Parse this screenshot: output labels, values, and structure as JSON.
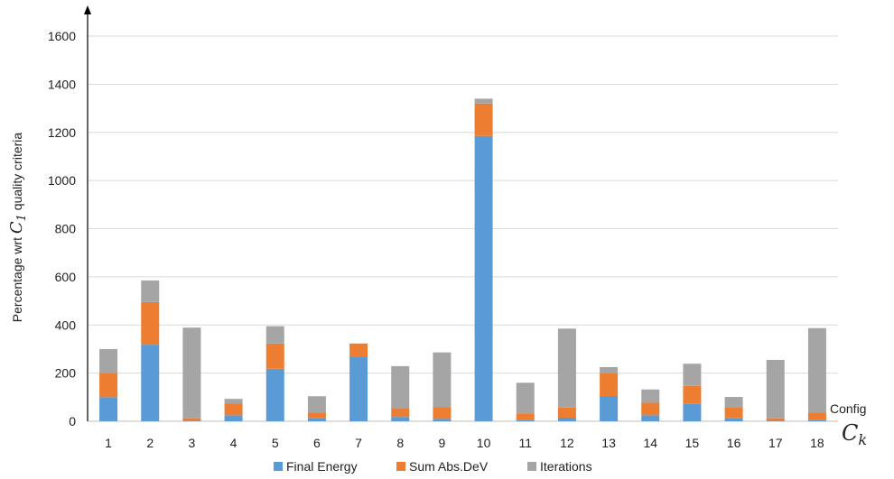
{
  "chart_data": {
    "type": "bar",
    "stacked": true,
    "categories": [
      "1",
      "2",
      "3",
      "4",
      "5",
      "6",
      "7",
      "8",
      "9",
      "10",
      "11",
      "12",
      "13",
      "14",
      "15",
      "16",
      "17",
      "18"
    ],
    "series": [
      {
        "name": "Final Energy",
        "color": "#5b9bd5",
        "values": [
          100,
          318,
          2,
          25,
          218,
          12,
          268,
          18,
          10,
          1185,
          5,
          15,
          105,
          25,
          72,
          12,
          2,
          5
        ]
      },
      {
        "name": "Sum Abs.DeV",
        "color": "#ed7d31",
        "values": [
          100,
          177,
          10,
          48,
          105,
          24,
          55,
          36,
          48,
          135,
          28,
          42,
          95,
          52,
          75,
          47,
          10,
          32
        ]
      },
      {
        "name": "Iterations",
        "color": "#a5a5a5",
        "values": [
          100,
          90,
          377,
          20,
          72,
          68,
          0,
          175,
          228,
          20,
          127,
          328,
          25,
          55,
          92,
          42,
          243,
          350
        ]
      }
    ],
    "ylim": [
      0,
      1600
    ],
    "yticks": [
      0,
      200,
      400,
      600,
      800,
      1000,
      1200,
      1400,
      1600
    ],
    "ylabel_prefix": "Percentage wrt",
    "ylabel_symbol": "C",
    "ylabel_sub": "1",
    "ylabel_suffix": "quality criteria",
    "xlabel_word": "Config",
    "xlabel_symbol": "C",
    "xlabel_sub": "k",
    "grid": true,
    "legend_position": "bottom"
  }
}
